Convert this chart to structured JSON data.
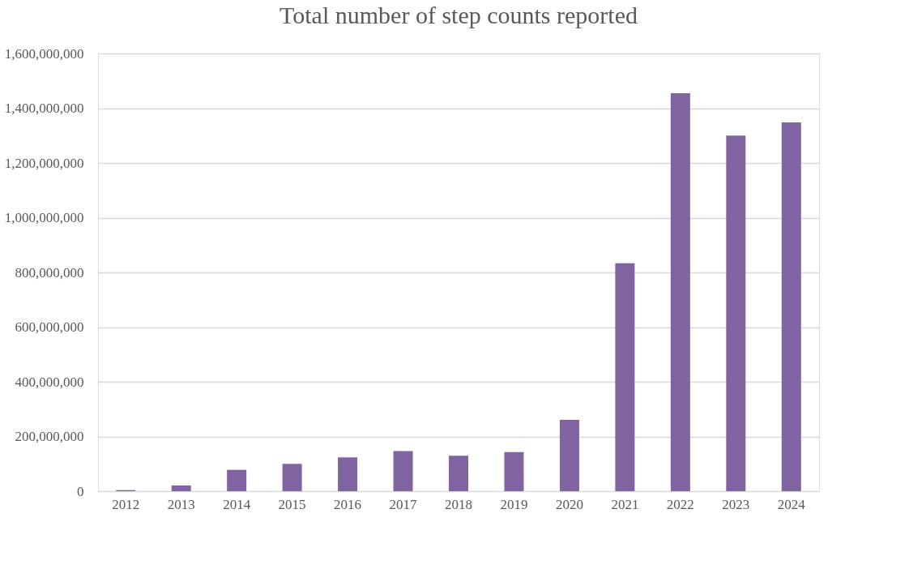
{
  "chart_data": {
    "type": "bar",
    "title": "Total number of step counts reported",
    "categories": [
      "2012",
      "2013",
      "2014",
      "2015",
      "2016",
      "2017",
      "2018",
      "2019",
      "2020",
      "2021",
      "2022",
      "2023",
      "2024"
    ],
    "values": [
      4000000,
      21000000,
      78000000,
      100000000,
      124000000,
      147000000,
      130000000,
      143000000,
      261000000,
      833000000,
      1455000000,
      1300000000,
      1348000000
    ],
    "color": "#8064a2",
    "ylim": [
      0,
      1600000000
    ],
    "yticks": [
      {
        "value": 0,
        "label": "0"
      },
      {
        "value": 200000000,
        "label": "200,000,000"
      },
      {
        "value": 400000000,
        "label": "400,000,000"
      },
      {
        "value": 600000000,
        "label": "600,000,000"
      },
      {
        "value": 800000000,
        "label": "800,000,000"
      },
      {
        "value": 1000000000,
        "label": "1,000,000,000"
      },
      {
        "value": 1200000000,
        "label": "1,200,000,000"
      },
      {
        "value": 1400000000,
        "label": "1,400,000,000"
      },
      {
        "value": 1600000000,
        "label": "1,600,000,000"
      }
    ],
    "grid": "y"
  }
}
